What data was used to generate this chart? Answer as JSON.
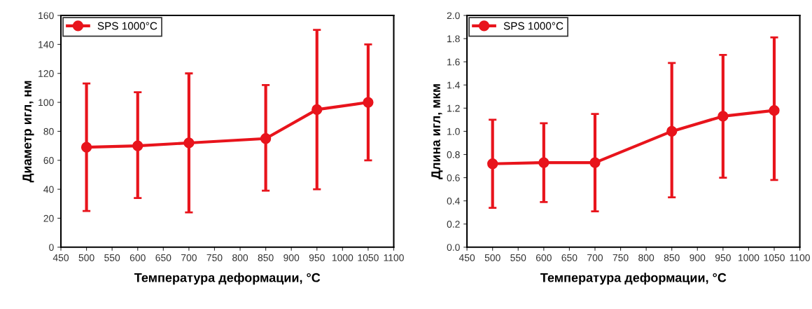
{
  "chart_data": [
    {
      "type": "line",
      "xlabel": "Температура деформации, °C",
      "ylabel": "Диаметр игл, нм",
      "x": [
        500,
        600,
        700,
        850,
        950,
        1050
      ],
      "xlim": [
        450,
        1100
      ],
      "xticks": [
        450,
        500,
        550,
        600,
        650,
        700,
        750,
        800,
        850,
        900,
        950,
        1000,
        1050,
        1100
      ],
      "ylim": [
        0,
        160
      ],
      "yticks": [
        0,
        20,
        40,
        60,
        80,
        100,
        120,
        140,
        160
      ],
      "grid": false,
      "legend": "top left",
      "marker": "circle",
      "line_style": "solid",
      "series": [
        {
          "name": "SPS 1000°C",
          "color": "#e8141c",
          "values": [
            69,
            70,
            72,
            75,
            95,
            100
          ],
          "errors": [
            [
              25,
              113
            ],
            [
              34,
              107
            ],
            [
              24,
              120
            ],
            [
              39,
              112
            ],
            [
              40,
              150
            ],
            [
              60,
              140
            ]
          ]
        }
      ]
    },
    {
      "type": "line",
      "xlabel": "Температура деформации, °C",
      "ylabel": "Длина игл, мкм",
      "x": [
        500,
        600,
        700,
        850,
        950,
        1050
      ],
      "xlim": [
        450,
        1100
      ],
      "xticks": [
        450,
        500,
        550,
        600,
        650,
        700,
        750,
        800,
        850,
        900,
        950,
        1000,
        1050,
        1100
      ],
      "ylim": [
        0,
        2.0
      ],
      "yticks": [
        {
          "value": 0,
          "label": "0.0"
        },
        0.2,
        0.4,
        0.6,
        0.8,
        {
          "value": 1.0,
          "label": "1.0"
        },
        1.2,
        1.4,
        1.6,
        1.8,
        {
          "value": 2.0,
          "label": "2.0"
        }
      ],
      "grid": false,
      "legend": "top left",
      "marker": "circle",
      "line_style": "solid",
      "series": [
        {
          "name": "SPS 1000°C",
          "color": "#e8141c",
          "values": [
            0.72,
            0.73,
            0.73,
            1.0,
            1.13,
            1.18
          ],
          "errors": [
            [
              0.34,
              1.1
            ],
            [
              0.39,
              1.07
            ],
            [
              0.31,
              1.15
            ],
            [
              0.43,
              1.59
            ],
            [
              0.6,
              1.66
            ],
            [
              0.58,
              1.81
            ]
          ]
        }
      ]
    }
  ]
}
